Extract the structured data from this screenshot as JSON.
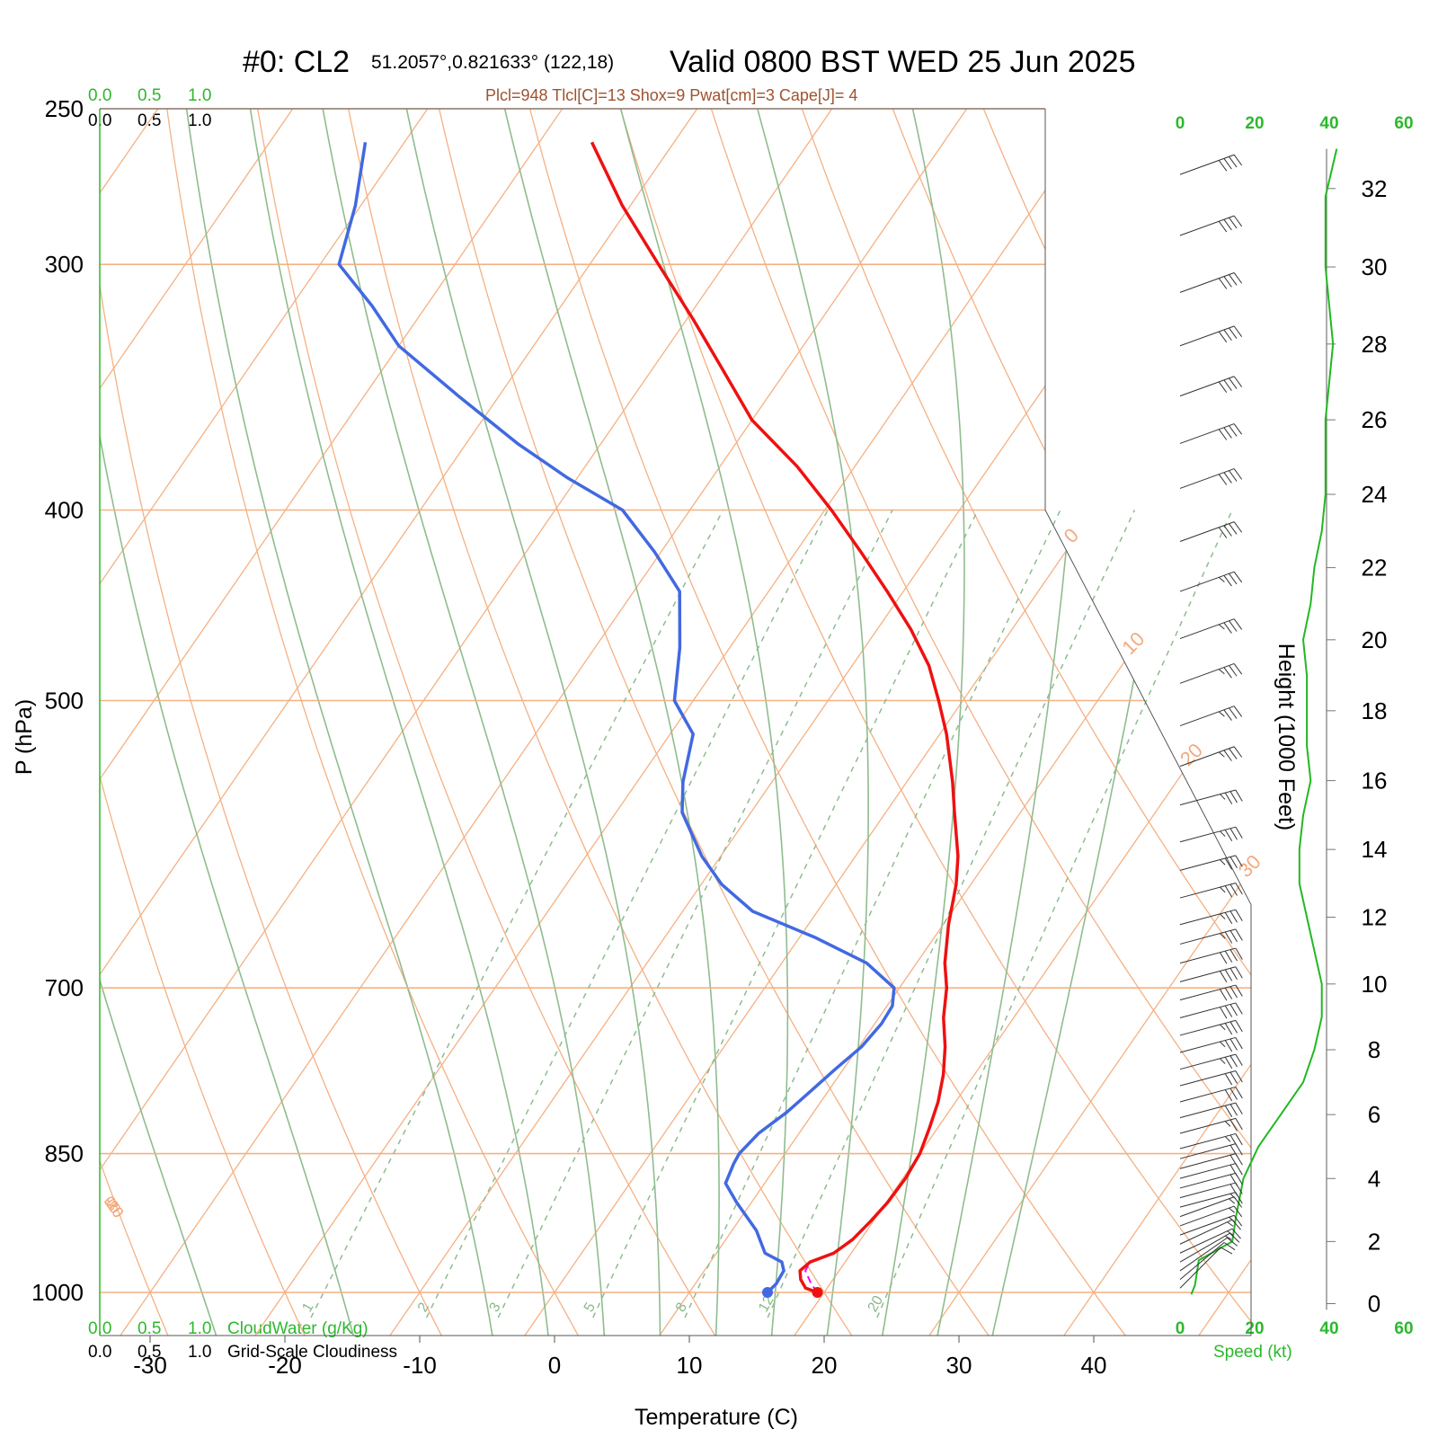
{
  "header": {
    "station": "#0: CL2",
    "coords": "51.2057°,0.821633° (122,18)",
    "valid": "Valid 0800 BST WED 25 Jun 2025",
    "indices": "Plcl=948 Tlcl[C]=13 Shox=9 Pwat[cm]=3 Cape[J]= 4"
  },
  "colors": {
    "temperature": "#ee1111",
    "dewpoint": "#4169e1",
    "isotherm": "#f4b183",
    "dry_adiabat": "#f4b183",
    "moist_adiabat": "#8fbc8f",
    "mixing_ratio": "#8fbc8f",
    "wind_speed": "#22b822",
    "parcel": "#ff00ff"
  },
  "cloud_scale": {
    "ticks": [
      "0.0",
      "0.5",
      "1.0"
    ],
    "cloudwater_label": "CloudWater (g/Kg)",
    "cloudiness_label": "Grid-Scale Cloudiness"
  },
  "speed_axis": {
    "ticks": [
      "0",
      "20",
      "40",
      "60"
    ],
    "label": "Speed (kt)"
  },
  "chart_data": {
    "type": "skew-t",
    "xlabel": "Temperature (C)",
    "ylabel": "P (hPa)",
    "y2label": "Height (1000 Feet)",
    "x_ticks": [
      -30,
      -20,
      -10,
      0,
      10,
      20,
      30,
      40
    ],
    "x_tick_labels": [
      "-30",
      "-20",
      "-10",
      "0",
      "10",
      "20",
      "30",
      "40"
    ],
    "p_ticks": [
      250,
      300,
      400,
      500,
      700,
      850,
      1000
    ],
    "p_tick_labels": [
      "250",
      "300",
      "400",
      "500",
      "700",
      "850",
      "1000"
    ],
    "height_ticks": [
      0,
      2,
      4,
      6,
      8,
      10,
      12,
      14,
      16,
      18,
      20,
      22,
      24,
      26,
      28,
      30,
      32
    ],
    "height_tick_labels": [
      "0",
      "2",
      "4",
      "6",
      "8",
      "10",
      "12",
      "14",
      "16",
      "18",
      "20",
      "22",
      "24",
      "26",
      "28",
      "30",
      "32"
    ],
    "isotherm_labels": [
      {
        "value": 10,
        "text": "10"
      },
      {
        "value": 0,
        "text": "0"
      },
      {
        "value": -10,
        "text": "-10"
      },
      {
        "value": -20,
        "text": "-20"
      },
      {
        "value": -30,
        "text": "-30"
      }
    ],
    "isotherm_labels_right": [
      {
        "value": 0,
        "text": "0"
      },
      {
        "value": 10,
        "text": "10"
      },
      {
        "value": 20,
        "text": "20"
      },
      {
        "value": 30,
        "text": "30"
      }
    ],
    "mixing_ratio_lines": [
      1,
      2,
      3,
      5,
      8,
      12,
      20
    ],
    "mixing_ratio_labels": [
      "1",
      "2",
      "3",
      "5",
      "8",
      "12",
      "20"
    ],
    "temperature": {
      "name": "Temperature",
      "points": [
        [
          1000,
          19.5
        ],
        [
          995,
          18.4
        ],
        [
          985,
          17.6
        ],
        [
          975,
          17.1
        ],
        [
          965,
          17.4
        ],
        [
          955,
          18.7
        ],
        [
          940,
          19.4
        ],
        [
          920,
          19.8
        ],
        [
          900,
          20.1
        ],
        [
          875,
          20.2
        ],
        [
          850,
          20.0
        ],
        [
          825,
          19.4
        ],
        [
          800,
          18.7
        ],
        [
          775,
          17.7
        ],
        [
          750,
          16.4
        ],
        [
          725,
          14.8
        ],
        [
          700,
          13.5
        ],
        [
          680,
          12.1
        ],
        [
          650,
          10.4
        ],
        [
          620,
          8.9
        ],
        [
          600,
          7.6
        ],
        [
          570,
          5.1
        ],
        [
          550,
          3.4
        ],
        [
          520,
          0.5
        ],
        [
          500,
          -1.8
        ],
        [
          480,
          -4.3
        ],
        [
          460,
          -7.5
        ],
        [
          440,
          -11.2
        ],
        [
          420,
          -15.2
        ],
        [
          400,
          -19.5
        ],
        [
          380,
          -24.3
        ],
        [
          360,
          -30.0
        ],
        [
          340,
          -34.6
        ],
        [
          320,
          -39.5
        ],
        [
          300,
          -44.9
        ],
        [
          280,
          -50.6
        ],
        [
          260,
          -56.1
        ]
      ]
    },
    "dewpoint": {
      "name": "Dewpoint",
      "points": [
        [
          1000,
          15.8
        ],
        [
          990,
          16.0
        ],
        [
          975,
          15.9
        ],
        [
          965,
          15.3
        ],
        [
          955,
          13.6
        ],
        [
          930,
          11.8
        ],
        [
          900,
          8.9
        ],
        [
          880,
          7.1
        ],
        [
          860,
          6.7
        ],
        [
          850,
          6.6
        ],
        [
          830,
          7.0
        ],
        [
          810,
          8.0
        ],
        [
          790,
          8.7
        ],
        [
          770,
          9.4
        ],
        [
          750,
          10.2
        ],
        [
          730,
          10.5
        ],
        [
          715,
          10.4
        ],
        [
          700,
          9.6
        ],
        [
          680,
          6.3
        ],
        [
          660,
          1.2
        ],
        [
          640,
          -4.8
        ],
        [
          620,
          -8.5
        ],
        [
          600,
          -11.4
        ],
        [
          570,
          -15.1
        ],
        [
          550,
          -16.6
        ],
        [
          520,
          -18.3
        ],
        [
          500,
          -21.4
        ],
        [
          470,
          -23.7
        ],
        [
          440,
          -26.6
        ],
        [
          420,
          -30.5
        ],
        [
          400,
          -35.0
        ],
        [
          385,
          -40.8
        ],
        [
          370,
          -46.2
        ],
        [
          350,
          -53.0
        ],
        [
          330,
          -60.0
        ],
        [
          315,
          -64.0
        ],
        [
          300,
          -68.6
        ],
        [
          280,
          -70.4
        ],
        [
          260,
          -72.9
        ]
      ]
    },
    "parcel": {
      "name": "Parcel",
      "points": [
        [
          1000,
          19.5
        ],
        [
          990,
          18.6
        ],
        [
          975,
          17.5
        ],
        [
          965,
          17.4
        ]
      ]
    },
    "surface_markers": {
      "temperature": 19.5,
      "dewpoint": 15.8
    },
    "wind_speed_profile": {
      "name": "Speed (kt)",
      "points": [
        [
          0.3,
          3
        ],
        [
          0.6,
          4
        ],
        [
          1.4,
          5
        ],
        [
          1.6,
          8
        ],
        [
          2.0,
          14
        ],
        [
          2.8,
          15
        ],
        [
          4.0,
          17
        ],
        [
          5.0,
          21
        ],
        [
          6.0,
          27
        ],
        [
          7.0,
          33
        ],
        [
          8.0,
          36
        ],
        [
          9.0,
          38
        ],
        [
          10.0,
          38
        ],
        [
          11.0,
          36
        ],
        [
          12.0,
          34
        ],
        [
          13.0,
          32
        ],
        [
          14.0,
          32
        ],
        [
          15.0,
          33
        ],
        [
          16.0,
          35
        ],
        [
          17.0,
          34
        ],
        [
          18.0,
          34
        ],
        [
          19.0,
          34
        ],
        [
          20.0,
          33
        ],
        [
          21.0,
          35
        ],
        [
          22.0,
          36
        ],
        [
          23.0,
          38
        ],
        [
          24.0,
          39
        ],
        [
          25.0,
          39
        ],
        [
          26.0,
          39
        ],
        [
          27.0,
          40
        ],
        [
          28.0,
          41
        ],
        [
          29.0,
          40
        ],
        [
          30.0,
          39
        ],
        [
          31.0,
          39
        ],
        [
          31.8,
          39
        ],
        [
          33.0,
          42
        ]
      ]
    },
    "wind_barbs": [
      {
        "p": 995,
        "dir": 225,
        "spd": 10
      },
      {
        "p": 985,
        "dir": 230,
        "spd": 10
      },
      {
        "p": 975,
        "dir": 235,
        "spd": 10
      },
      {
        "p": 965,
        "dir": 240,
        "spd": 15
      },
      {
        "p": 955,
        "dir": 245,
        "spd": 15
      },
      {
        "p": 945,
        "dir": 245,
        "spd": 15
      },
      {
        "p": 935,
        "dir": 250,
        "spd": 15
      },
      {
        "p": 925,
        "dir": 250,
        "spd": 15
      },
      {
        "p": 915,
        "dir": 250,
        "spd": 15
      },
      {
        "p": 905,
        "dir": 255,
        "spd": 15
      },
      {
        "p": 895,
        "dir": 255,
        "spd": 20
      },
      {
        "p": 885,
        "dir": 255,
        "spd": 20
      },
      {
        "p": 875,
        "dir": 255,
        "spd": 20
      },
      {
        "p": 865,
        "dir": 255,
        "spd": 20
      },
      {
        "p": 855,
        "dir": 255,
        "spd": 20
      },
      {
        "p": 845,
        "dir": 255,
        "spd": 25
      },
      {
        "p": 830,
        "dir": 255,
        "spd": 25
      },
      {
        "p": 815,
        "dir": 255,
        "spd": 30
      },
      {
        "p": 800,
        "dir": 255,
        "spd": 30
      },
      {
        "p": 785,
        "dir": 255,
        "spd": 30
      },
      {
        "p": 770,
        "dir": 255,
        "spd": 35
      },
      {
        "p": 755,
        "dir": 255,
        "spd": 35
      },
      {
        "p": 740,
        "dir": 255,
        "spd": 35
      },
      {
        "p": 725,
        "dir": 255,
        "spd": 40
      },
      {
        "p": 710,
        "dir": 255,
        "spd": 40
      },
      {
        "p": 695,
        "dir": 255,
        "spd": 40
      },
      {
        "p": 680,
        "dir": 255,
        "spd": 40
      },
      {
        "p": 665,
        "dir": 255,
        "spd": 35
      },
      {
        "p": 650,
        "dir": 255,
        "spd": 35
      },
      {
        "p": 630,
        "dir": 255,
        "spd": 35
      },
      {
        "p": 610,
        "dir": 255,
        "spd": 35
      },
      {
        "p": 590,
        "dir": 255,
        "spd": 35
      },
      {
        "p": 565,
        "dir": 255,
        "spd": 35
      },
      {
        "p": 540,
        "dir": 250,
        "spd": 35
      },
      {
        "p": 515,
        "dir": 250,
        "spd": 35
      },
      {
        "p": 490,
        "dir": 250,
        "spd": 35
      },
      {
        "p": 465,
        "dir": 250,
        "spd": 35
      },
      {
        "p": 440,
        "dir": 250,
        "spd": 35
      },
      {
        "p": 415,
        "dir": 250,
        "spd": 40
      },
      {
        "p": 390,
        "dir": 250,
        "spd": 40
      },
      {
        "p": 370,
        "dir": 250,
        "spd": 40
      },
      {
        "p": 350,
        "dir": 250,
        "spd": 40
      },
      {
        "p": 330,
        "dir": 250,
        "spd": 40
      },
      {
        "p": 310,
        "dir": 250,
        "spd": 40
      },
      {
        "p": 290,
        "dir": 250,
        "spd": 40
      },
      {
        "p": 270,
        "dir": 250,
        "spd": 40
      }
    ]
  }
}
